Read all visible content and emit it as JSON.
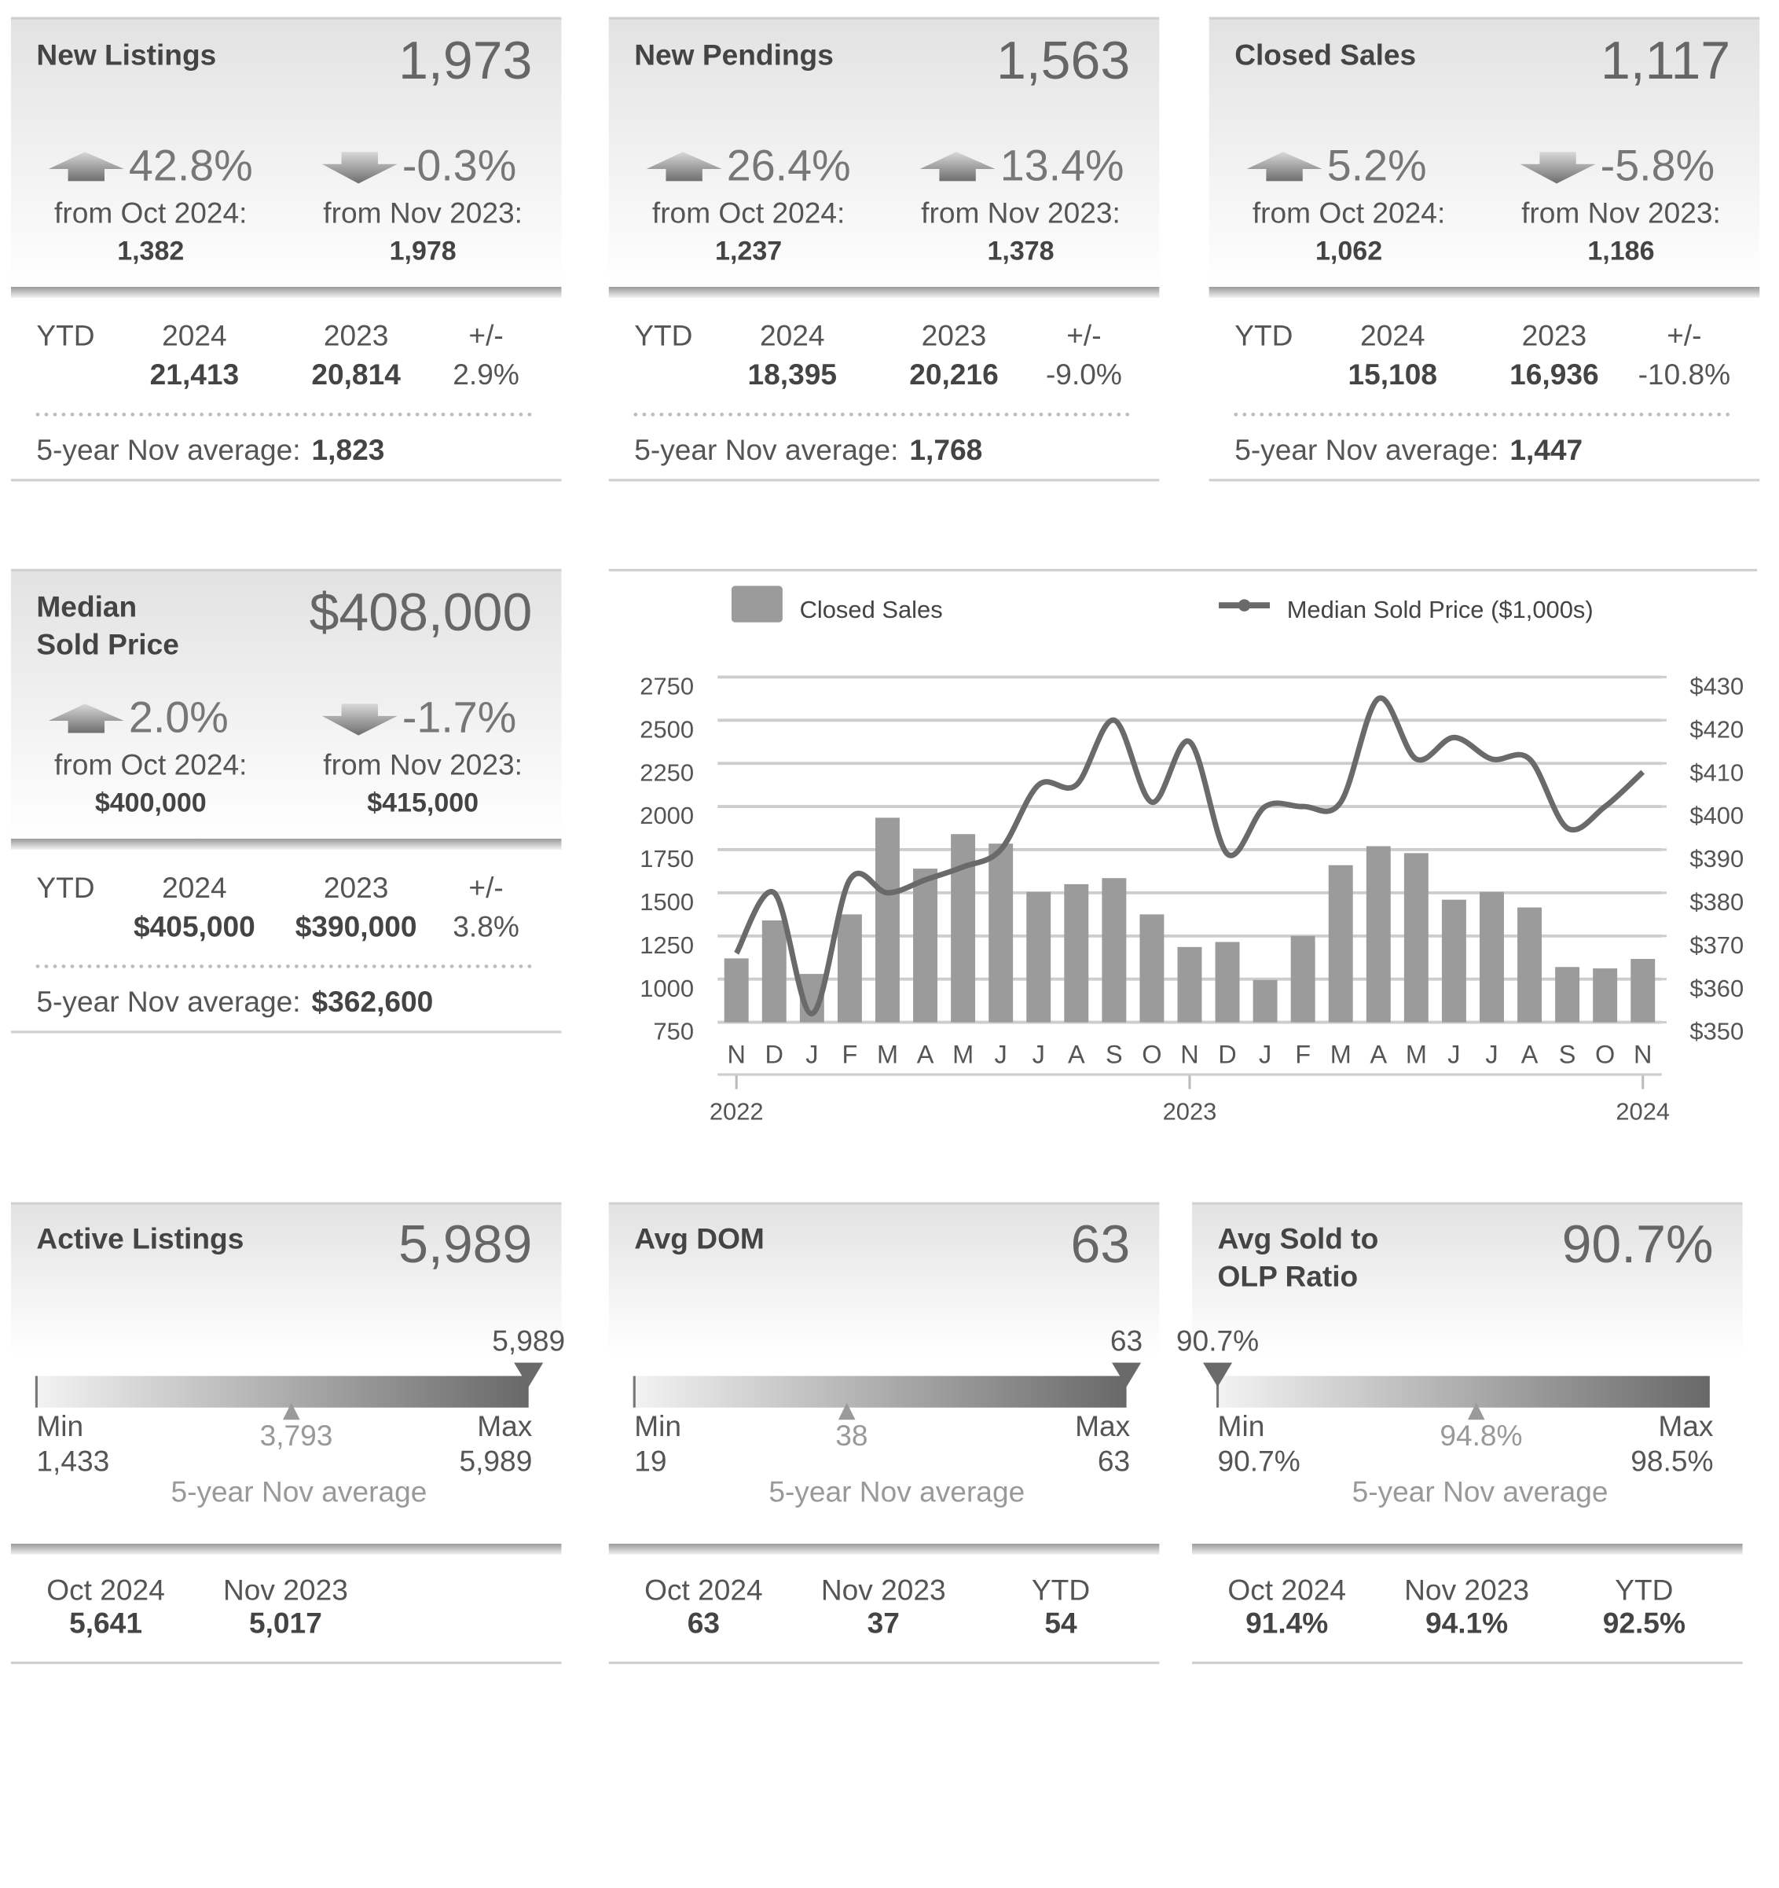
{
  "cards": [
    {
      "title": [
        "New Listings"
      ],
      "value": "1,973",
      "changes": [
        {
          "direction": "up",
          "percent": "42.8%",
          "label": "from Oct 2024:",
          "prior": "1,382"
        },
        {
          "direction": "down",
          "percent": "-0.3%",
          "label": "from Nov 2023:",
          "prior": "1,978"
        }
      ],
      "ytd": {
        "headers": [
          "YTD",
          "2024",
          "2023",
          "+/-"
        ],
        "values": [
          "21,413",
          "20,814",
          "2.9%"
        ]
      },
      "average": {
        "label": "5-year Nov average:",
        "value": "1,823"
      }
    },
    {
      "title": [
        "New Pendings"
      ],
      "value": "1,563",
      "changes": [
        {
          "direction": "up",
          "percent": "26.4%",
          "label": "from Oct 2024:",
          "prior": "1,237"
        },
        {
          "direction": "up",
          "percent": "13.4%",
          "label": "from Nov 2023:",
          "prior": "1,378"
        }
      ],
      "ytd": {
        "headers": [
          "YTD",
          "2024",
          "2023",
          "+/-"
        ],
        "values": [
          "18,395",
          "20,216",
          "-9.0%"
        ]
      },
      "average": {
        "label": "5-year Nov average:",
        "value": "1,768"
      }
    },
    {
      "title": [
        "Closed Sales"
      ],
      "value": "1,117",
      "changes": [
        {
          "direction": "up",
          "percent": "5.2%",
          "label": "from Oct 2024:",
          "prior": "1,062"
        },
        {
          "direction": "down",
          "percent": "-5.8%",
          "label": "from Nov 2023:",
          "prior": "1,186"
        }
      ],
      "ytd": {
        "headers": [
          "YTD",
          "2024",
          "2023",
          "+/-"
        ],
        "values": [
          "15,108",
          "16,936",
          "-10.8%"
        ]
      },
      "average": {
        "label": "5-year Nov average:",
        "value": "1,447"
      }
    },
    {
      "title": [
        "Median",
        "Sold Price"
      ],
      "value": "$408,000",
      "changes": [
        {
          "direction": "up",
          "percent": "2.0%",
          "label": "from Oct 2024:",
          "prior": "$400,000"
        },
        {
          "direction": "down",
          "percent": "-1.7%",
          "label": "from Nov 2023:",
          "prior": "$415,000"
        }
      ],
      "ytd": {
        "headers": [
          "YTD",
          "2024",
          "2023",
          "+/-"
        ],
        "values": [
          "$405,000",
          "$390,000",
          "3.8%"
        ]
      },
      "average": {
        "label": "5-year Nov average:",
        "value": "$362,600"
      }
    }
  ],
  "gauges": [
    {
      "title": [
        "Active Listings"
      ],
      "value": "5,989",
      "gauge": {
        "current": {
          "value": 5989,
          "label": "5,989"
        },
        "min": {
          "value": 1433,
          "label": "1,433"
        },
        "max": {
          "value": 5989,
          "label": "5,989"
        },
        "average": {
          "value": 3793,
          "label": "3,793"
        },
        "min_label": "Min",
        "max_label": "Max",
        "caption": "5-year Nov average"
      },
      "footer": [
        {
          "label": "Oct 2024",
          "value": "5,641"
        },
        {
          "label": "Nov 2023",
          "value": "5,017"
        }
      ]
    },
    {
      "title": [
        "Avg DOM"
      ],
      "value": "63",
      "gauge": {
        "current": {
          "value": 63,
          "label": "63"
        },
        "min": {
          "value": 19,
          "label": "19"
        },
        "max": {
          "value": 63,
          "label": "63"
        },
        "average": {
          "value": 38,
          "label": "38"
        },
        "min_label": "Min",
        "max_label": "Max",
        "caption": "5-year Nov average"
      },
      "footer": [
        {
          "label": "Oct 2024",
          "value": "63"
        },
        {
          "label": "Nov 2023",
          "value": "37"
        },
        {
          "label": "YTD",
          "value": "54"
        }
      ]
    },
    {
      "title": [
        "Avg Sold to",
        "OLP Ratio"
      ],
      "value": "90.7%",
      "gauge": {
        "current": {
          "value": 90.7,
          "label": "90.7%"
        },
        "min": {
          "value": 90.7,
          "label": "90.7%"
        },
        "max": {
          "value": 98.5,
          "label": "98.5%"
        },
        "average": {
          "value": 94.8,
          "label": "94.8%"
        },
        "min_label": "Min",
        "max_label": "Max",
        "caption": "5-year Nov average"
      },
      "footer": [
        {
          "label": "Oct 2024",
          "value": "91.4%"
        },
        {
          "label": "Nov 2023",
          "value": "94.1%"
        },
        {
          "label": "YTD",
          "value": "92.5%"
        }
      ]
    }
  ],
  "chart_data": {
    "type": "combo",
    "categories": [
      "N",
      "D",
      "J",
      "F",
      "M",
      "A",
      "M",
      "J",
      "J",
      "A",
      "S",
      "O",
      "N",
      "D",
      "J",
      "F",
      "M",
      "A",
      "M",
      "J",
      "J",
      "A",
      "S",
      "O",
      "N"
    ],
    "years": [
      "2022",
      null,
      null,
      null,
      null,
      null,
      null,
      null,
      null,
      null,
      null,
      null,
      "2023",
      null,
      null,
      null,
      null,
      null,
      null,
      null,
      null,
      null,
      null,
      null,
      "2024"
    ],
    "series": [
      {
        "name": "Closed Sales",
        "type": "bar",
        "color": "#9b9b9b",
        "values": [
          1120,
          1340,
          1030,
          1375,
          1935,
          1640,
          1840,
          1785,
          1505,
          1550,
          1585,
          1375,
          1186,
          1215,
          995,
          1250,
          1660,
          1770,
          1730,
          1460,
          1505,
          1415,
          1070,
          1062,
          1117
        ]
      },
      {
        "name": "Median Sold Price ($1,000s)",
        "type": "line",
        "axis": "y2",
        "color": "#6a6a6a",
        "values": [
          366,
          380,
          352,
          383,
          380,
          383,
          386,
          390,
          405,
          405,
          420,
          401,
          415,
          389,
          400,
          400,
          401,
          425,
          411,
          416,
          411,
          411,
          395,
          400,
          408
        ]
      }
    ],
    "ylim": [
      750,
      2750
    ],
    "yticks": [
      750,
      1000,
      1250,
      1500,
      1750,
      2000,
      2250,
      2500,
      2750
    ],
    "y2lim": [
      350,
      430
    ],
    "y2ticks": [
      {
        "value": 350,
        "label": "$350"
      },
      {
        "value": 360,
        "label": "$360"
      },
      {
        "value": 370,
        "label": "$370"
      },
      {
        "value": 380,
        "label": "$380"
      },
      {
        "value": 390,
        "label": "$390"
      },
      {
        "value": 400,
        "label": "$400"
      },
      {
        "value": 410,
        "label": "$410"
      },
      {
        "value": 420,
        "label": "$420"
      },
      {
        "value": 430,
        "label": "$430"
      }
    ],
    "grid": true
  }
}
